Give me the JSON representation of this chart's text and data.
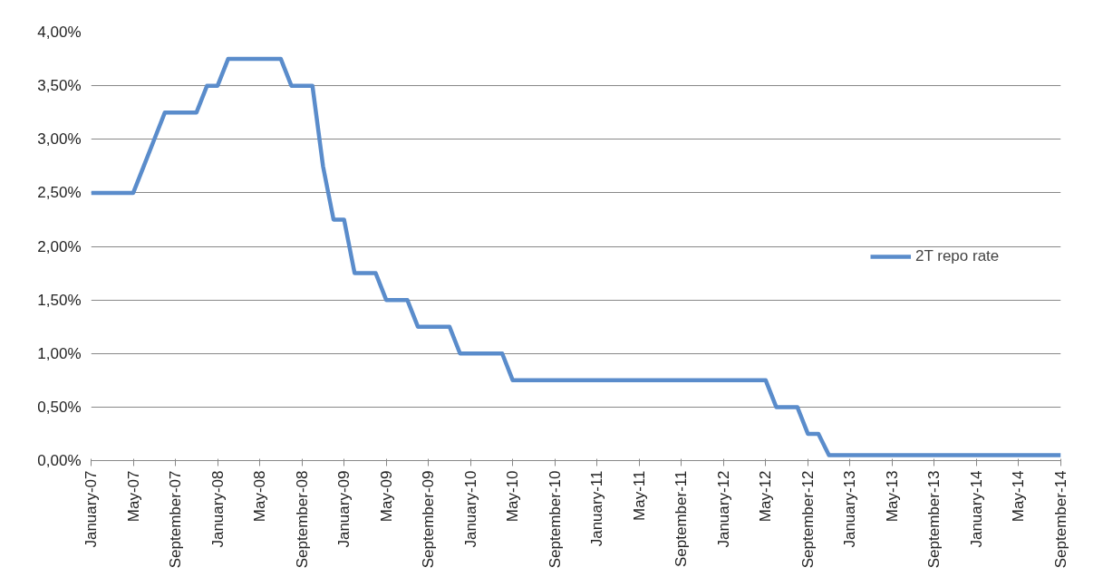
{
  "chart_data": {
    "type": "line",
    "categories": [
      "January-07",
      null,
      null,
      null,
      "May-07",
      null,
      null,
      null,
      "September-07",
      null,
      null,
      null,
      "January-08",
      null,
      null,
      null,
      "May-08",
      null,
      null,
      null,
      "September-08",
      null,
      null,
      null,
      "January-09",
      null,
      null,
      null,
      "May-09",
      null,
      null,
      null,
      "September-09",
      null,
      null,
      null,
      "January-10",
      null,
      null,
      null,
      "May-10",
      null,
      null,
      null,
      "September-10",
      null,
      null,
      null,
      "January-11",
      null,
      null,
      null,
      "May-11",
      null,
      null,
      null,
      "September-11",
      null,
      null,
      null,
      "January-12",
      null,
      null,
      null,
      "May-12",
      null,
      null,
      null,
      "September-12",
      null,
      null,
      null,
      "January-13",
      null,
      null,
      null,
      "May-13",
      null,
      null,
      null,
      "September-13",
      null,
      null,
      null,
      "January-14",
      null,
      null,
      null,
      "May-14",
      null,
      null,
      null,
      "September-14"
    ],
    "series": [
      {
        "name": "2T repo rate",
        "color": "#5a8ccb",
        "values": [
          2.5,
          2.5,
          2.5,
          2.5,
          2.5,
          2.75,
          3.0,
          3.25,
          3.25,
          3.25,
          3.25,
          3.5,
          3.5,
          3.75,
          3.75,
          3.75,
          3.75,
          3.75,
          3.75,
          3.5,
          3.5,
          3.5,
          2.75,
          2.25,
          2.25,
          1.75,
          1.75,
          1.75,
          1.5,
          1.5,
          1.5,
          1.25,
          1.25,
          1.25,
          1.25,
          1.0,
          1.0,
          1.0,
          1.0,
          1.0,
          0.75,
          0.75,
          0.75,
          0.75,
          0.75,
          0.75,
          0.75,
          0.75,
          0.75,
          0.75,
          0.75,
          0.75,
          0.75,
          0.75,
          0.75,
          0.75,
          0.75,
          0.75,
          0.75,
          0.75,
          0.75,
          0.75,
          0.75,
          0.75,
          0.75,
          0.5,
          0.5,
          0.5,
          0.25,
          0.25,
          0.05,
          0.05,
          0.05,
          0.05,
          0.05,
          0.05,
          0.05,
          0.05,
          0.05,
          0.05,
          0.05,
          0.05,
          0.05,
          0.05,
          0.05,
          0.05,
          0.05,
          0.05,
          0.05,
          0.05,
          0.05,
          0.05,
          0.05
        ]
      }
    ],
    "ylim": [
      0,
      4
    ],
    "yticks": [
      {
        "value": 0,
        "label": "0,00%"
      },
      {
        "value": 0.5,
        "label": "0,50%"
      },
      {
        "value": 1,
        "label": "1,00%"
      },
      {
        "value": 1.5,
        "label": "1,50%"
      },
      {
        "value": 2,
        "label": "2,00%"
      },
      {
        "value": 2.5,
        "label": "2,50%"
      },
      {
        "value": 3,
        "label": "3,00%"
      },
      {
        "value": 3.5,
        "label": "3,50%"
      },
      {
        "value": 4,
        "label": "4,00%"
      }
    ],
    "grid": "y",
    "legend": "right",
    "marker": "none",
    "line_style": "solid"
  }
}
